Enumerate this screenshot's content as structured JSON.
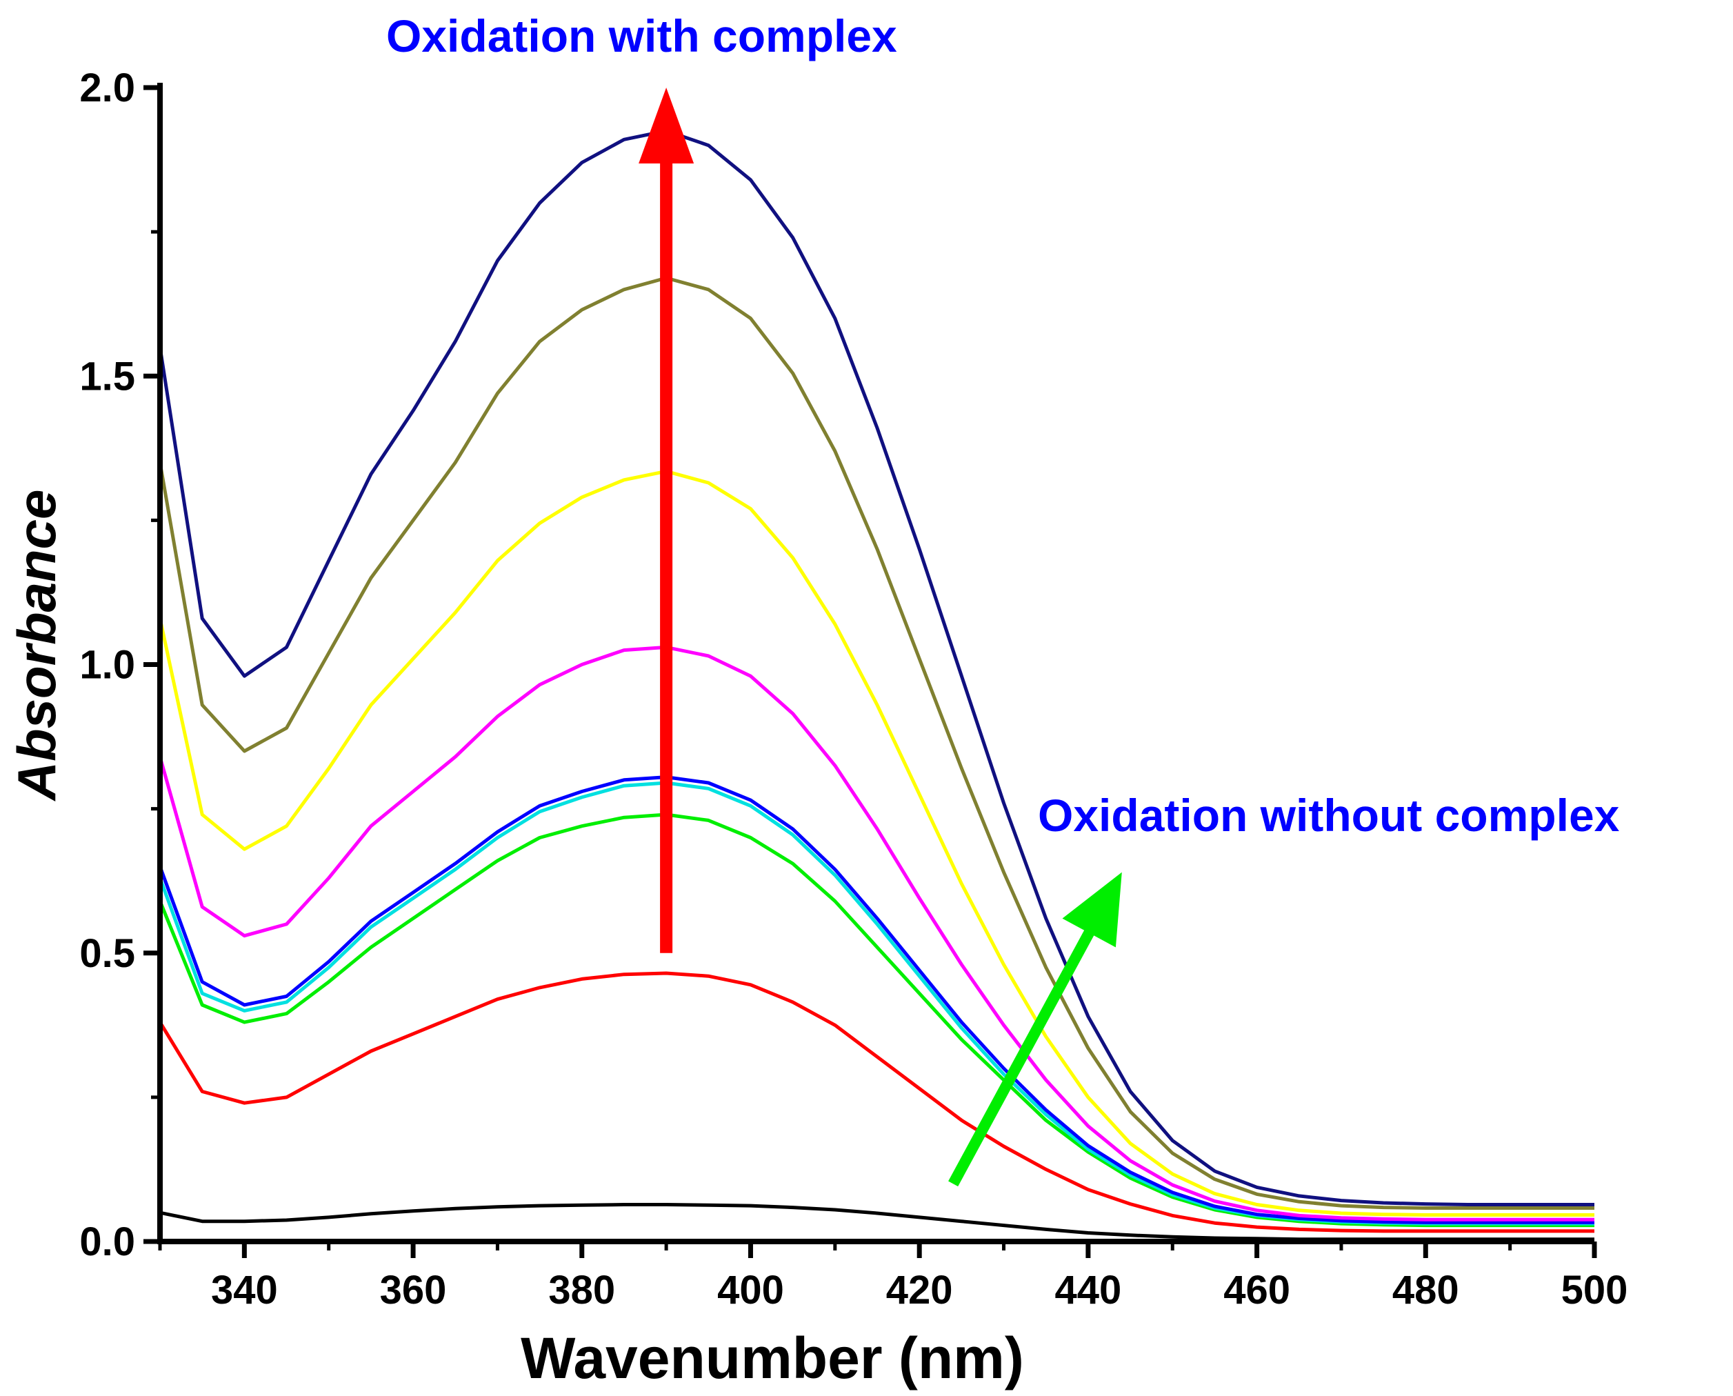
{
  "chart_data": {
    "type": "line",
    "title": "",
    "xlabel": "Wavenumber (nm)",
    "ylabel": "Absorbance",
    "xlim": [
      330,
      500
    ],
    "ylim": [
      0,
      2.0
    ],
    "xticks": [
      340,
      360,
      380,
      400,
      420,
      440,
      460,
      480,
      500
    ],
    "yticks": [
      0.0,
      0.5,
      1.0,
      1.5,
      2.0
    ],
    "xtick_labels": [
      "340",
      "360",
      "380",
      "400",
      "420",
      "440",
      "460",
      "480",
      "500"
    ],
    "ytick_labels": [
      "0.0",
      "0.5",
      "1.0",
      "1.5",
      "2.0"
    ],
    "grid": false,
    "x": [
      330,
      335,
      340,
      345,
      350,
      355,
      360,
      365,
      370,
      375,
      380,
      385,
      390,
      395,
      400,
      405,
      410,
      415,
      420,
      425,
      430,
      435,
      440,
      445,
      450,
      455,
      460,
      465,
      470,
      475,
      480,
      485,
      490,
      495,
      500
    ],
    "series": [
      {
        "name": "black",
        "color": "#000000",
        "values": [
          0.05,
          0.035,
          0.035,
          0.037,
          0.042,
          0.048,
          0.053,
          0.057,
          0.06,
          0.062,
          0.063,
          0.064,
          0.064,
          0.063,
          0.062,
          0.059,
          0.055,
          0.049,
          0.042,
          0.035,
          0.028,
          0.021,
          0.015,
          0.011,
          0.008,
          0.006,
          0.005,
          0.004,
          0.004,
          0.004,
          0.004,
          0.004,
          0.004,
          0.004,
          0.004
        ]
      },
      {
        "name": "red",
        "color": "#ff0000",
        "values": [
          0.38,
          0.26,
          0.24,
          0.25,
          0.29,
          0.33,
          0.36,
          0.39,
          0.42,
          0.44,
          0.455,
          0.463,
          0.465,
          0.46,
          0.445,
          0.415,
          0.375,
          0.32,
          0.265,
          0.21,
          0.165,
          0.125,
          0.09,
          0.065,
          0.045,
          0.032,
          0.025,
          0.021,
          0.019,
          0.018,
          0.018,
          0.018,
          0.018,
          0.018,
          0.018
        ]
      },
      {
        "name": "green",
        "color": "#00ee00",
        "values": [
          0.59,
          0.41,
          0.38,
          0.395,
          0.45,
          0.51,
          0.56,
          0.61,
          0.66,
          0.7,
          0.72,
          0.735,
          0.74,
          0.73,
          0.7,
          0.655,
          0.59,
          0.51,
          0.43,
          0.35,
          0.28,
          0.21,
          0.155,
          0.11,
          0.077,
          0.055,
          0.042,
          0.035,
          0.031,
          0.029,
          0.028,
          0.028,
          0.028,
          0.028,
          0.028
        ]
      },
      {
        "name": "cyan",
        "color": "#00e0e0",
        "values": [
          0.63,
          0.43,
          0.4,
          0.415,
          0.475,
          0.545,
          0.595,
          0.645,
          0.7,
          0.745,
          0.77,
          0.79,
          0.795,
          0.785,
          0.755,
          0.705,
          0.635,
          0.55,
          0.46,
          0.37,
          0.29,
          0.22,
          0.16,
          0.115,
          0.081,
          0.058,
          0.045,
          0.038,
          0.034,
          0.032,
          0.031,
          0.031,
          0.031,
          0.031,
          0.031
        ]
      },
      {
        "name": "blue",
        "color": "#0000ff",
        "values": [
          0.65,
          0.45,
          0.41,
          0.425,
          0.485,
          0.555,
          0.605,
          0.655,
          0.71,
          0.755,
          0.78,
          0.8,
          0.805,
          0.795,
          0.765,
          0.715,
          0.645,
          0.56,
          0.47,
          0.38,
          0.3,
          0.228,
          0.166,
          0.12,
          0.085,
          0.061,
          0.047,
          0.04,
          0.036,
          0.034,
          0.033,
          0.033,
          0.033,
          0.033,
          0.033
        ]
      },
      {
        "name": "magenta",
        "color": "#ff00ff",
        "values": [
          0.84,
          0.58,
          0.53,
          0.55,
          0.63,
          0.72,
          0.78,
          0.84,
          0.91,
          0.965,
          1.0,
          1.025,
          1.03,
          1.015,
          0.98,
          0.915,
          0.825,
          0.715,
          0.595,
          0.48,
          0.375,
          0.28,
          0.2,
          0.14,
          0.098,
          0.07,
          0.054,
          0.045,
          0.041,
          0.039,
          0.038,
          0.038,
          0.038,
          0.038,
          0.038
        ]
      },
      {
        "name": "yellow",
        "color": "#ffff00",
        "values": [
          1.08,
          0.74,
          0.68,
          0.72,
          0.82,
          0.93,
          1.01,
          1.09,
          1.18,
          1.245,
          1.29,
          1.32,
          1.335,
          1.315,
          1.27,
          1.185,
          1.07,
          0.93,
          0.775,
          0.62,
          0.48,
          0.355,
          0.25,
          0.17,
          0.117,
          0.083,
          0.064,
          0.054,
          0.049,
          0.047,
          0.046,
          0.046,
          0.046,
          0.046,
          0.046
        ]
      },
      {
        "name": "olive",
        "color": "#808030",
        "values": [
          1.35,
          0.93,
          0.85,
          0.89,
          1.02,
          1.15,
          1.25,
          1.35,
          1.47,
          1.56,
          1.615,
          1.65,
          1.67,
          1.65,
          1.6,
          1.505,
          1.37,
          1.2,
          1.01,
          0.82,
          0.64,
          0.475,
          0.335,
          0.225,
          0.153,
          0.108,
          0.082,
          0.069,
          0.062,
          0.059,
          0.058,
          0.058,
          0.058,
          0.058,
          0.058
        ]
      },
      {
        "name": "navy",
        "color": "#101080",
        "values": [
          1.55,
          1.08,
          0.98,
          1.03,
          1.18,
          1.33,
          1.44,
          1.56,
          1.7,
          1.8,
          1.87,
          1.91,
          1.925,
          1.9,
          1.84,
          1.74,
          1.6,
          1.41,
          1.2,
          0.98,
          0.76,
          0.56,
          0.39,
          0.26,
          0.175,
          0.122,
          0.094,
          0.079,
          0.071,
          0.067,
          0.065,
          0.064,
          0.064,
          0.064,
          0.064
        ]
      }
    ],
    "annotations": [
      {
        "text": "Oxidation with complex",
        "color": "#0000ff"
      },
      {
        "text": "Oxidation without complex",
        "color": "#0000ff"
      }
    ],
    "arrows": [
      {
        "name": "red-arrow",
        "color": "#ff0000",
        "from": [
          390,
          0.5
        ],
        "to": [
          390,
          2.0
        ]
      },
      {
        "name": "green-arrow",
        "color": "#00ee00",
        "from": [
          424,
          0.1
        ],
        "to": [
          444,
          0.64
        ]
      }
    ]
  }
}
